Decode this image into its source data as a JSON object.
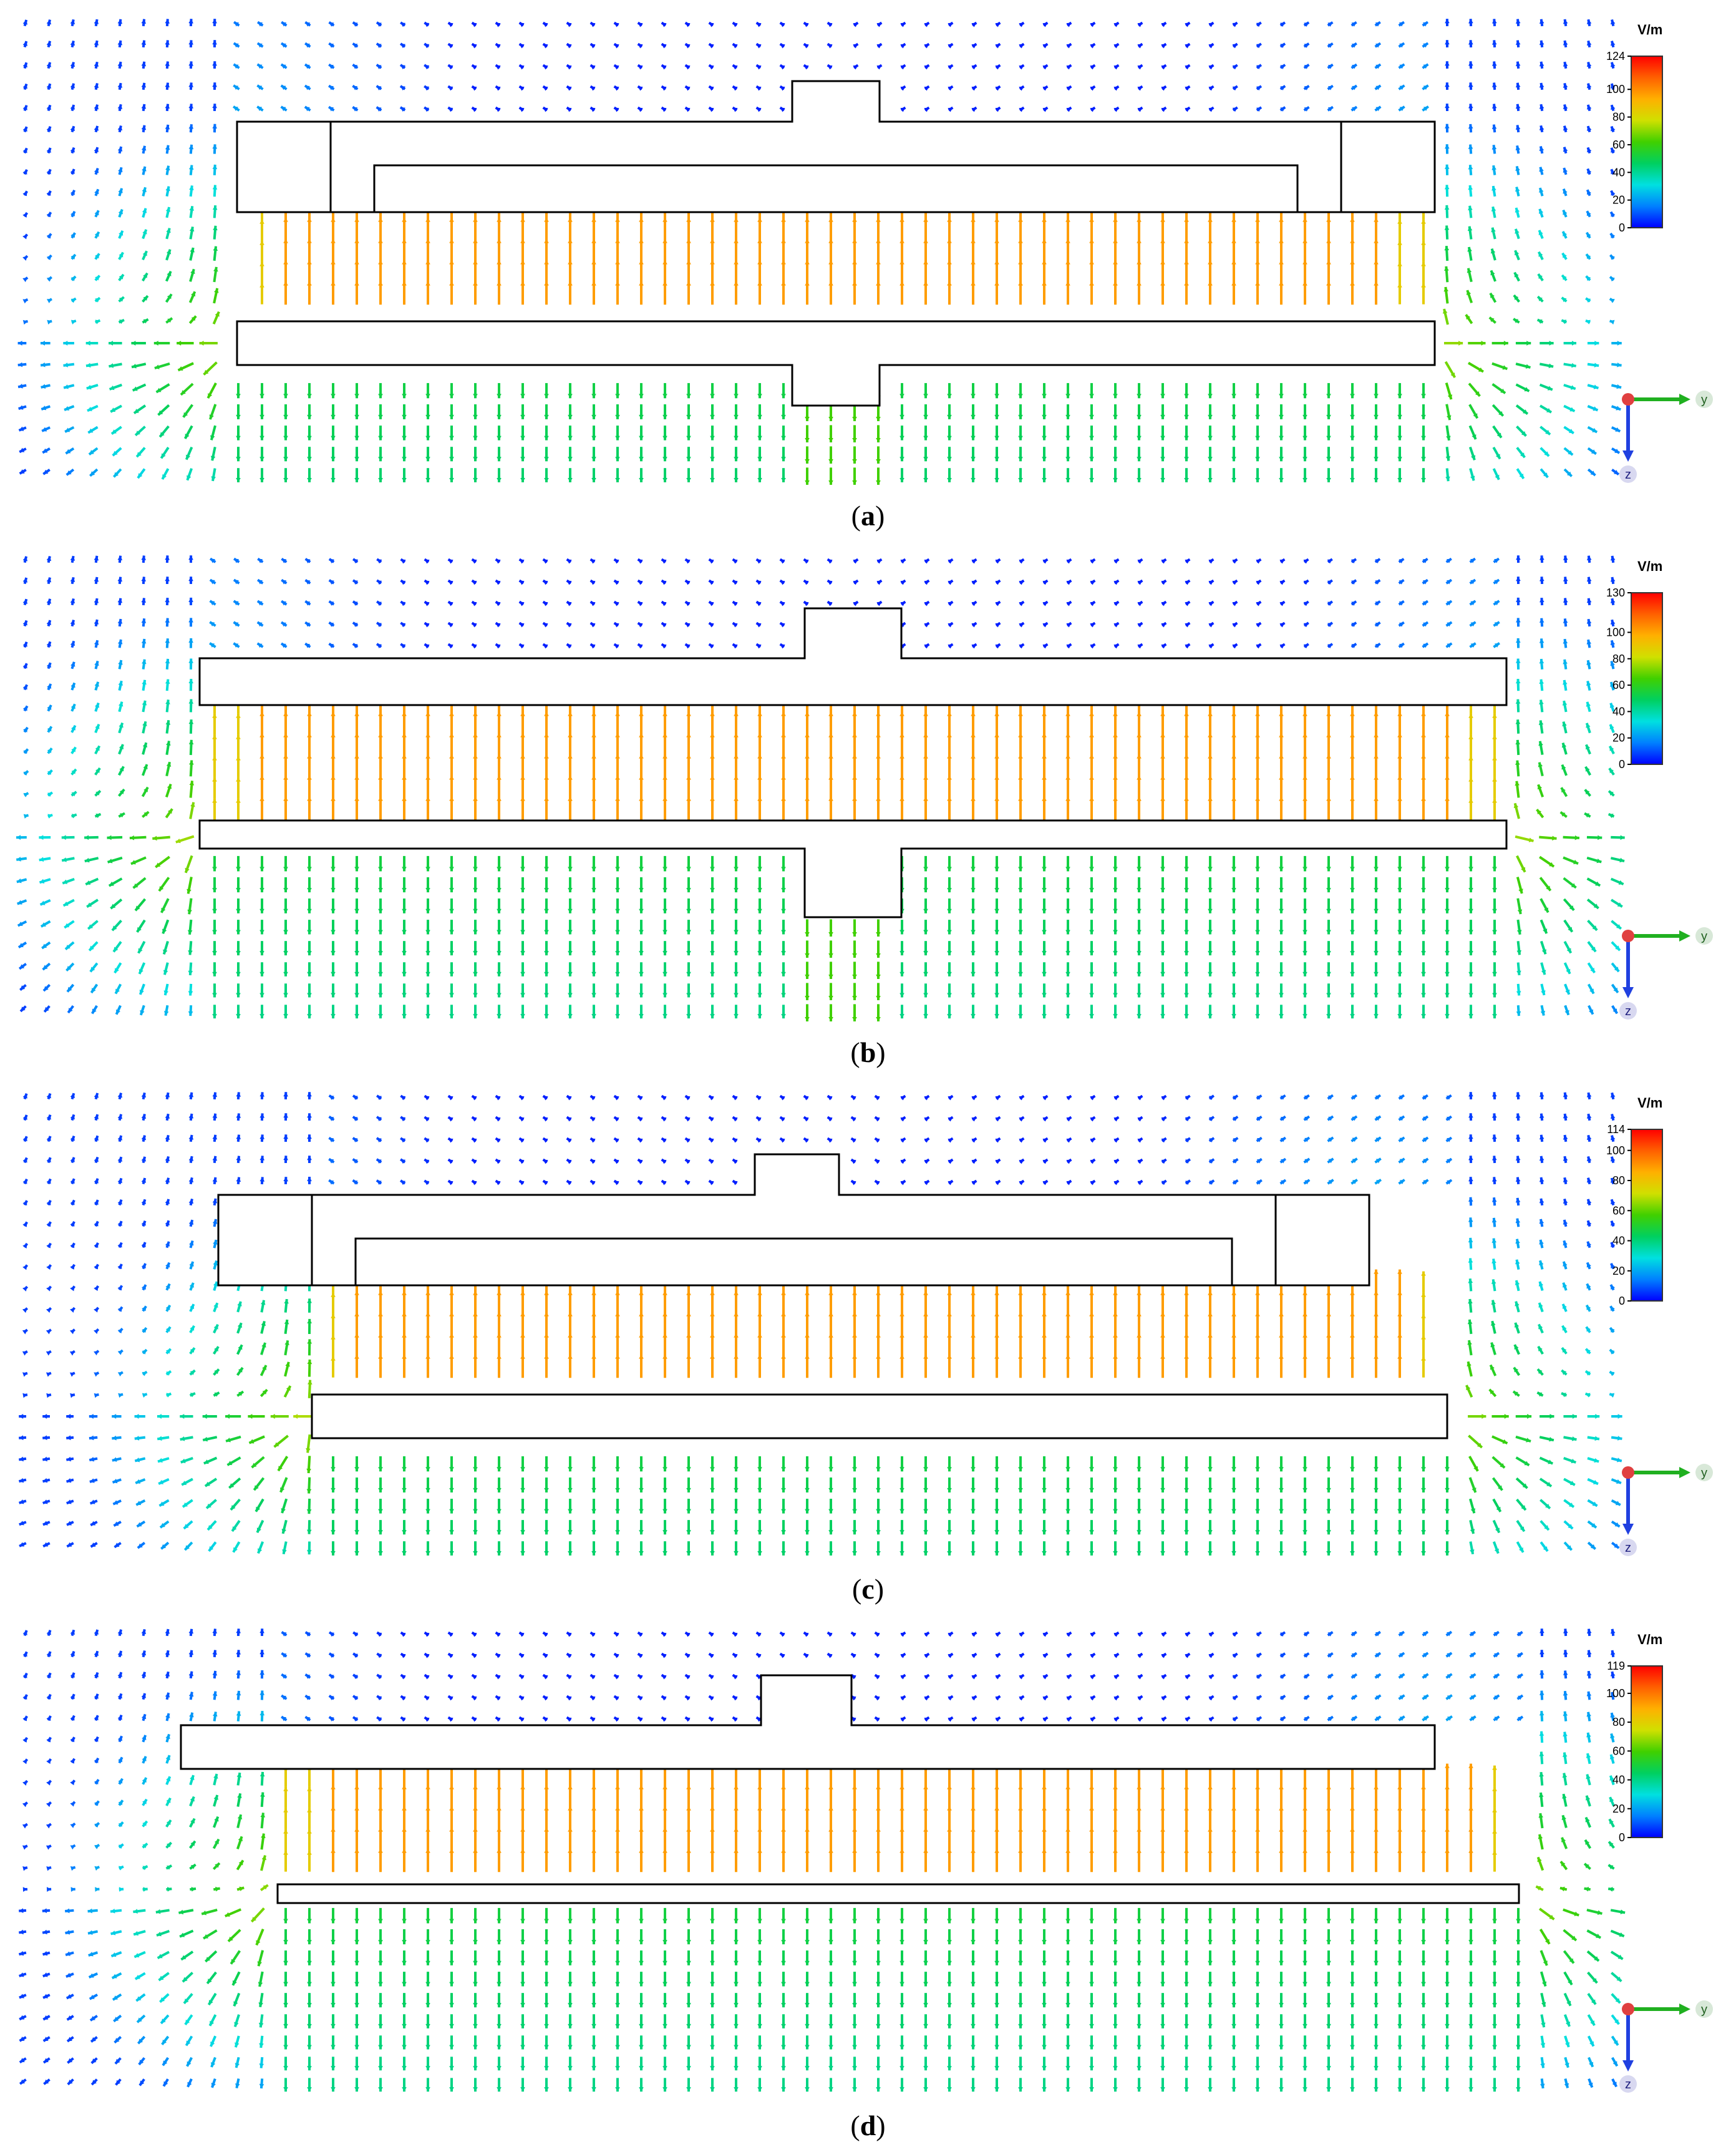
{
  "colorbar_unit": "V/m",
  "colors": {
    "scale": [
      "#0000ff",
      "#0080ff",
      "#00e0e0",
      "#00d060",
      "#40d000",
      "#d0e000",
      "#ffb000",
      "#ff6000",
      "#ff0000"
    ],
    "outline": "#000000",
    "axis_y": "#20b020",
    "axis_z": "#2040e0",
    "axis_origin": "#e04040"
  },
  "axis_labels": {
    "y": "y",
    "z": "z"
  },
  "panels": [
    {
      "id": "a",
      "caption_label": "a",
      "colorbar": {
        "max": 124,
        "ticks": [
          0,
          20,
          40,
          60,
          80,
          100
        ]
      },
      "variant": "with_end_blocks"
    },
    {
      "id": "b",
      "caption_label": "b",
      "colorbar": {
        "max": 130,
        "ticks": [
          0,
          20,
          40,
          60,
          80,
          100
        ]
      },
      "variant": "plain_top"
    },
    {
      "id": "c",
      "caption_label": "c",
      "colorbar": {
        "max": 114,
        "ticks": [
          0,
          20,
          40,
          60,
          80,
          100
        ]
      },
      "variant": "with_end_blocks"
    },
    {
      "id": "d",
      "caption_label": "d",
      "colorbar": {
        "max": 119,
        "ticks": [
          0,
          20,
          40,
          60,
          80,
          100
        ]
      },
      "variant": "plain_top"
    }
  ]
}
